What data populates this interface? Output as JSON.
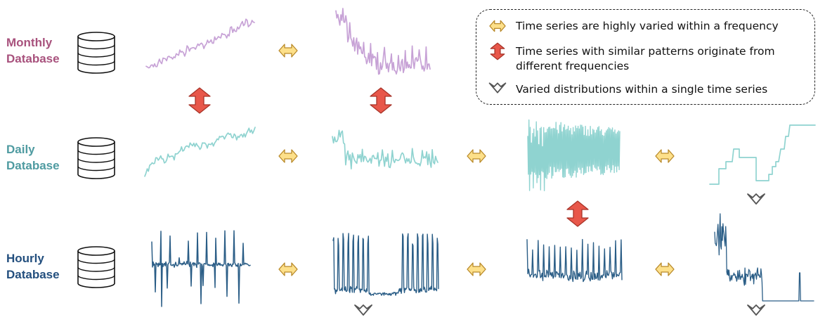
{
  "rows": [
    {
      "id": "monthly",
      "label_line1": "Monthly",
      "label_line2": "Database",
      "color": "#a8527d",
      "series_color": "#c7a2d6"
    },
    {
      "id": "daily",
      "label_line1": "Daily",
      "label_line2": "Database",
      "color": "#4f9ba1",
      "series_color": "#8fd3d0"
    },
    {
      "id": "hourly",
      "label_line1": "Hourly",
      "label_line2": "Database",
      "color": "#234f7e",
      "series_color": "#2a5d86"
    }
  ],
  "legend": {
    "items": [
      {
        "icon": "horizontal-double-arrow-icon",
        "text_line1": "Time series are highly varied within a frequency",
        "text_line2": ""
      },
      {
        "icon": "vertical-double-arrow-icon",
        "text_line1": "Time series with similar patterns originate from",
        "text_line2": "different frequencies"
      },
      {
        "icon": "down-chevron-icon",
        "text_line1": "Varied distributions within a single time series",
        "text_line2": ""
      }
    ]
  },
  "colors": {
    "horizontal_arrow_fill": "#fde08a",
    "horizontal_arrow_stroke": "#b98a2b",
    "vertical_arrow_fill": "#e8574a",
    "vertical_arrow_stroke": "#a83328",
    "chevron_stroke": "#555555"
  }
}
